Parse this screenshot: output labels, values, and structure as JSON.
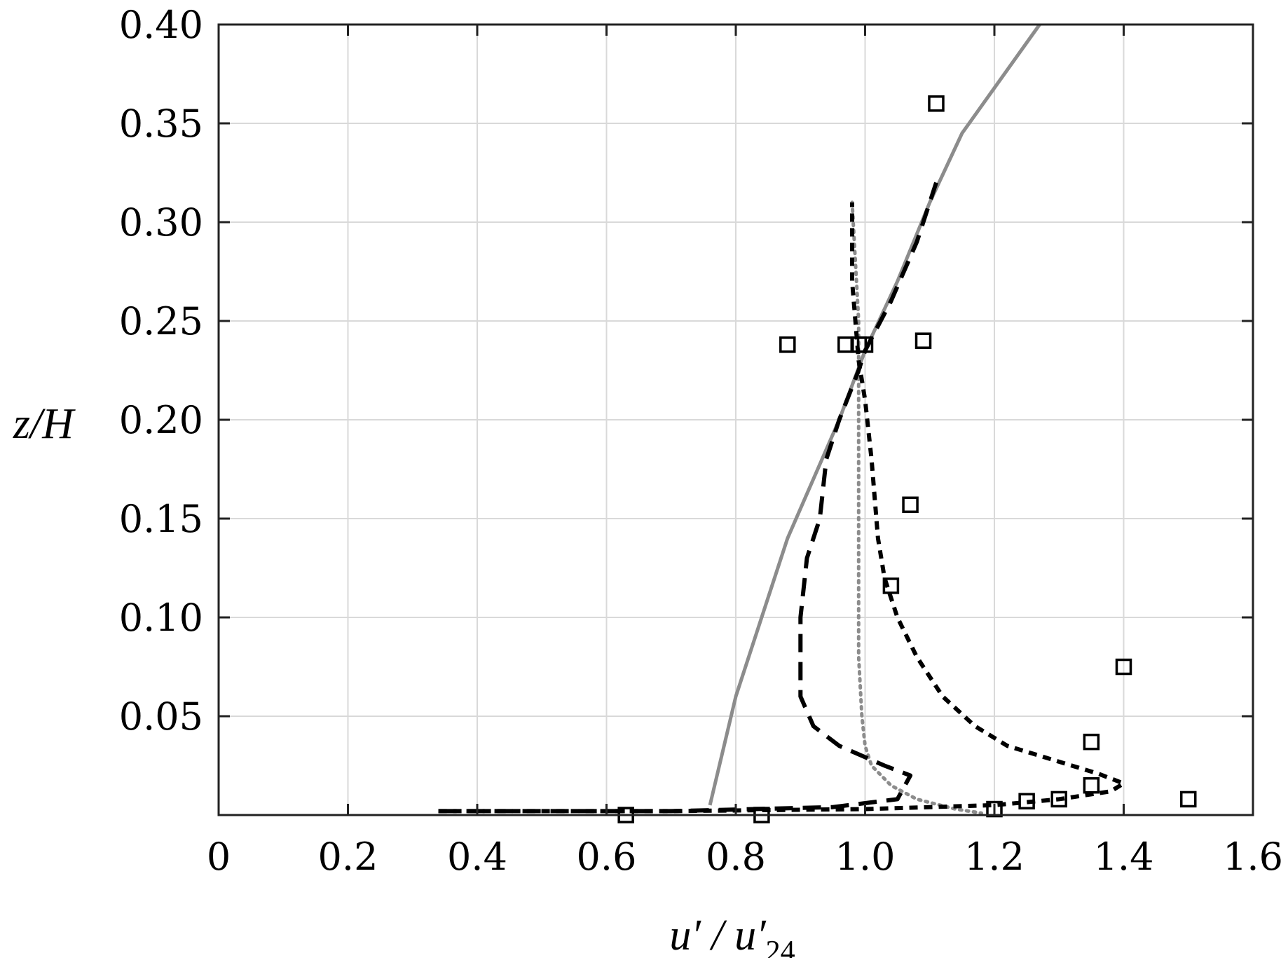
{
  "chart_data": {
    "type": "line",
    "title": "",
    "xlabel": {
      "base": "u′ / u′",
      "subscript": "24"
    },
    "ylabel": "z/H",
    "xlim": [
      0,
      1.6
    ],
    "ylim": [
      0,
      0.4
    ],
    "x_ticks": [
      0,
      0.2,
      0.4,
      0.6,
      0.8,
      1.0,
      1.2,
      1.4,
      1.6
    ],
    "x_tick_labels": [
      "0",
      "0.2",
      "0.4",
      "0.6",
      "0.8",
      "1.0",
      "1.2",
      "1.4",
      "1.6"
    ],
    "y_ticks": [
      0.05,
      0.1,
      0.15,
      0.2,
      0.25,
      0.3,
      0.35,
      0.4
    ],
    "y_tick_labels": [
      "0.05",
      "0.10",
      "0.15",
      "0.20",
      "0.25",
      "0.30",
      "0.35",
      "0.40"
    ],
    "grid": true,
    "series": [
      {
        "style": "solid",
        "color": "#8c8c8c",
        "points": [
          [
            0.76,
            0.005
          ],
          [
            0.8,
            0.06
          ],
          [
            0.85,
            0.11
          ],
          [
            0.88,
            0.14
          ],
          [
            0.92,
            0.17
          ],
          [
            0.96,
            0.2
          ],
          [
            1.0,
            0.235
          ],
          [
            1.05,
            0.27
          ],
          [
            1.1,
            0.31
          ],
          [
            1.15,
            0.345
          ],
          [
            1.27,
            0.4
          ]
        ]
      },
      {
        "style": "dotted",
        "color": "#8c8c8c",
        "points": [
          [
            0.98,
            0.31
          ],
          [
            0.99,
            0.25
          ],
          [
            0.99,
            0.15
          ],
          [
            0.99,
            0.08
          ],
          [
            0.995,
            0.05
          ],
          [
            1.0,
            0.035
          ],
          [
            1.01,
            0.025
          ],
          [
            1.04,
            0.015
          ],
          [
            1.08,
            0.008
          ],
          [
            1.14,
            0.003
          ],
          [
            1.18,
            0.001
          ]
        ]
      },
      {
        "style": "long-dash",
        "color": "#000000",
        "points": [
          [
            0.34,
            0.002
          ],
          [
            0.7,
            0.002
          ],
          [
            0.95,
            0.004
          ],
          [
            1.05,
            0.008
          ],
          [
            1.07,
            0.02
          ],
          [
            1.03,
            0.025
          ],
          [
            0.96,
            0.035
          ],
          [
            0.92,
            0.045
          ],
          [
            0.9,
            0.06
          ],
          [
            0.9,
            0.1
          ],
          [
            0.91,
            0.13
          ],
          [
            0.93,
            0.15
          ],
          [
            0.94,
            0.18
          ],
          [
            0.96,
            0.2
          ],
          [
            0.99,
            0.225
          ],
          [
            1.0,
            0.235
          ],
          [
            1.04,
            0.26
          ],
          [
            1.08,
            0.29
          ],
          [
            1.11,
            0.32
          ]
        ]
      },
      {
        "style": "short-dash",
        "color": "#000000",
        "points": [
          [
            0.34,
            0.002
          ],
          [
            0.7,
            0.002
          ],
          [
            1.0,
            0.003
          ],
          [
            1.2,
            0.005
          ],
          [
            1.3,
            0.008
          ],
          [
            1.38,
            0.012
          ],
          [
            1.4,
            0.016
          ],
          [
            1.36,
            0.021
          ],
          [
            1.3,
            0.027
          ],
          [
            1.22,
            0.035
          ],
          [
            1.17,
            0.045
          ],
          [
            1.12,
            0.06
          ],
          [
            1.08,
            0.08
          ],
          [
            1.05,
            0.1
          ],
          [
            1.03,
            0.12
          ],
          [
            1.02,
            0.14
          ],
          [
            1.01,
            0.18
          ],
          [
            1.0,
            0.21
          ],
          [
            0.99,
            0.23
          ],
          [
            0.98,
            0.27
          ],
          [
            0.98,
            0.31
          ]
        ]
      },
      {
        "style": "markers",
        "marker": "square",
        "color": "#000000",
        "points": [
          [
            0.63,
            0.0
          ],
          [
            0.84,
            0.0
          ],
          [
            1.2,
            0.003
          ],
          [
            1.25,
            0.007
          ],
          [
            1.3,
            0.008
          ],
          [
            1.35,
            0.015
          ],
          [
            1.35,
            0.037
          ],
          [
            1.4,
            0.075
          ],
          [
            1.5,
            0.008
          ],
          [
            1.04,
            0.116
          ],
          [
            1.07,
            0.157
          ],
          [
            0.88,
            0.238
          ],
          [
            0.97,
            0.238
          ],
          [
            0.99,
            0.238
          ],
          [
            1.0,
            0.238
          ],
          [
            1.09,
            0.24
          ],
          [
            1.11,
            0.36
          ]
        ]
      }
    ]
  }
}
